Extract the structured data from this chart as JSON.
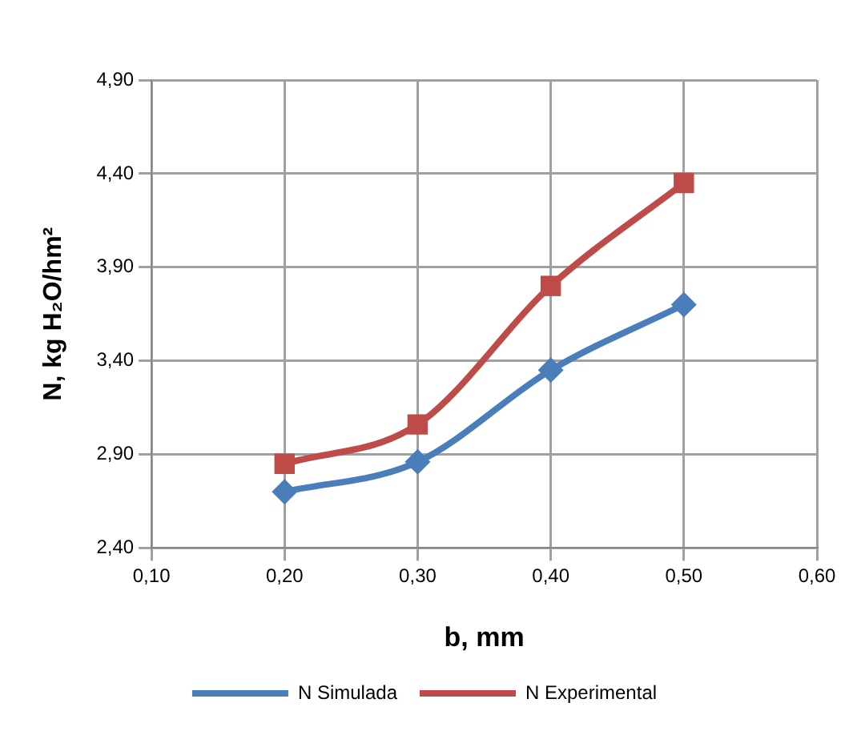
{
  "chart_data": {
    "type": "line",
    "xlabel": "b, mm",
    "ylabel": "N, kg H₂O/hm²",
    "x": [
      0.2,
      0.3,
      0.4,
      0.5
    ],
    "series": [
      {
        "name": "N Simulada",
        "color": "#4a7ebb",
        "marker": "diamond",
        "values": [
          2.7,
          2.86,
          3.35,
          3.7
        ]
      },
      {
        "name": "N Experimental",
        "color": "#be4b48",
        "marker": "square",
        "values": [
          2.85,
          3.06,
          3.8,
          4.35
        ]
      }
    ],
    "xlim": [
      0.1,
      0.6
    ],
    "xticks": [
      {
        "value": 0.1,
        "label": "0,10"
      },
      {
        "value": 0.2,
        "label": "0,20"
      },
      {
        "value": 0.3,
        "label": "0,30"
      },
      {
        "value": 0.4,
        "label": "0,40"
      },
      {
        "value": 0.5,
        "label": "0,50"
      },
      {
        "value": 0.6,
        "label": "0,60"
      }
    ],
    "ylim": [
      2.4,
      4.9
    ],
    "yticks": [
      {
        "value": 2.4,
        "label": "2,40"
      },
      {
        "value": 2.9,
        "label": "2,90"
      },
      {
        "value": 3.4,
        "label": "3,40"
      },
      {
        "value": 3.9,
        "label": "3,90"
      },
      {
        "value": 4.4,
        "label": "4,40"
      },
      {
        "value": 4.9,
        "label": "4,90"
      }
    ],
    "grid": true,
    "legend": "bottom"
  }
}
